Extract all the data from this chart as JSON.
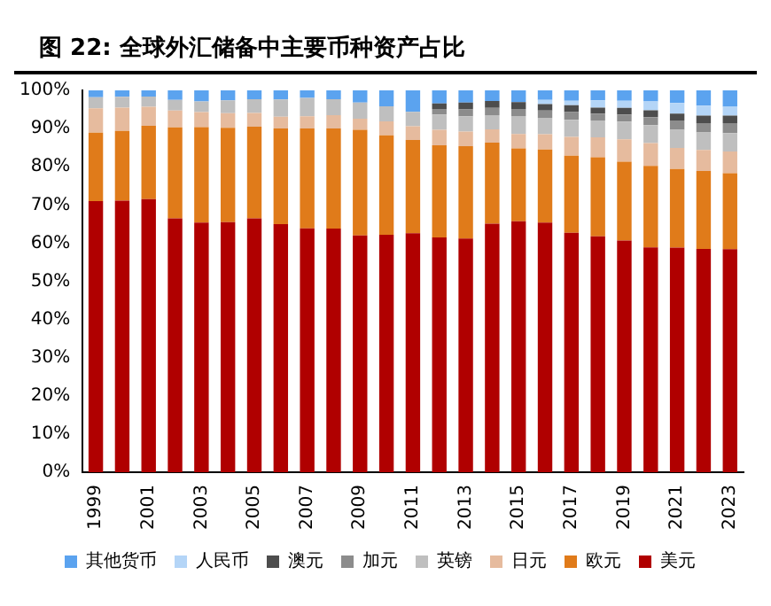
{
  "chart_data": {
    "type": "bar",
    "title": "图 22: 全球外汇储备中主要币种资产占比",
    "stacked": true,
    "legend": "bottom",
    "categories": [
      "1999",
      null,
      "2001",
      null,
      "2003",
      null,
      "2005",
      null,
      "2007",
      null,
      "2009",
      null,
      "2011",
      null,
      "2013",
      null,
      "2015",
      null,
      "2017",
      null,
      "2019",
      null,
      "2021",
      null,
      "2023"
    ],
    "ylim": [
      0,
      100
    ],
    "yticks": [
      {
        "value": 0,
        "label": "0%"
      },
      {
        "value": 10,
        "label": "10%"
      },
      {
        "value": 20,
        "label": "20%"
      },
      {
        "value": 30,
        "label": "30%"
      },
      {
        "value": 40,
        "label": "40%"
      },
      {
        "value": 50,
        "label": "50%"
      },
      {
        "value": 60,
        "label": "60%"
      },
      {
        "value": 70,
        "label": "70%"
      },
      {
        "value": 80,
        "label": "80%"
      },
      {
        "value": 90,
        "label": "90%"
      },
      {
        "value": 100,
        "label": "100%"
      }
    ],
    "series": [
      {
        "name": "美元",
        "color": "#b00000",
        "values": [
          71.0,
          71.1,
          71.5,
          66.5,
          65.4,
          65.5,
          66.5,
          65.0,
          63.9,
          63.8,
          62.0,
          62.2,
          62.6,
          61.5,
          61.2,
          65.1,
          65.7,
          65.4,
          62.7,
          61.8,
          60.7,
          58.9,
          58.8,
          58.5,
          58.4
        ]
      },
      {
        "name": "欧元",
        "color": "#e07b1a",
        "values": [
          17.9,
          18.3,
          19.2,
          23.8,
          25.0,
          24.7,
          24.0,
          25.0,
          26.1,
          26.2,
          27.7,
          26.0,
          24.4,
          24.1,
          24.2,
          21.2,
          19.1,
          19.1,
          20.2,
          20.7,
          20.6,
          21.3,
          20.6,
          20.4,
          19.9
        ]
      },
      {
        "name": "日元",
        "color": "#e6bb9e",
        "values": [
          6.4,
          6.1,
          5.0,
          4.4,
          3.9,
          3.8,
          3.6,
          3.1,
          3.2,
          3.5,
          2.9,
          3.7,
          3.6,
          4.1,
          3.8,
          3.5,
          3.8,
          4.0,
          4.9,
          5.2,
          5.9,
          6.0,
          5.5,
          5.5,
          5.7
        ]
      },
      {
        "name": "英镑",
        "color": "#bfbfbf",
        "values": [
          2.9,
          2.8,
          2.7,
          2.8,
          2.8,
          3.4,
          3.6,
          4.5,
          4.8,
          4.2,
          4.2,
          3.9,
          3.8,
          4.0,
          4.0,
          3.7,
          4.7,
          4.3,
          4.5,
          4.4,
          4.6,
          4.7,
          4.8,
          4.6,
          4.8
        ]
      },
      {
        "name": "加元",
        "color": "#8c8c8c",
        "values": [
          null,
          null,
          null,
          null,
          null,
          null,
          null,
          null,
          null,
          null,
          null,
          null,
          null,
          1.4,
          1.8,
          1.9,
          1.8,
          1.9,
          2.0,
          1.8,
          1.9,
          2.1,
          2.4,
          2.4,
          2.6
        ]
      },
      {
        "name": "澳元",
        "color": "#4d4d4d",
        "values": [
          null,
          null,
          null,
          null,
          null,
          null,
          null,
          null,
          null,
          null,
          null,
          null,
          null,
          1.5,
          1.8,
          1.8,
          1.8,
          1.7,
          1.8,
          1.6,
          1.7,
          1.8,
          1.8,
          2.0,
          2.0
        ]
      },
      {
        "name": "人民币",
        "color": "#b4d5f7",
        "values": [
          null,
          null,
          null,
          null,
          null,
          null,
          null,
          null,
          null,
          null,
          null,
          null,
          null,
          null,
          null,
          null,
          null,
          1.1,
          1.2,
          1.9,
          1.9,
          2.3,
          2.8,
          2.6,
          2.3
        ]
      },
      {
        "name": "其他货币",
        "color": "#5ba3ef",
        "values": [
          1.8,
          1.7,
          1.6,
          2.5,
          2.9,
          2.6,
          2.3,
          2.4,
          2.0,
          2.3,
          3.2,
          4.2,
          5.6,
          3.4,
          3.2,
          2.8,
          3.1,
          2.5,
          2.7,
          2.6,
          2.7,
          2.9,
          3.3,
          4.0,
          4.3
        ]
      }
    ]
  }
}
